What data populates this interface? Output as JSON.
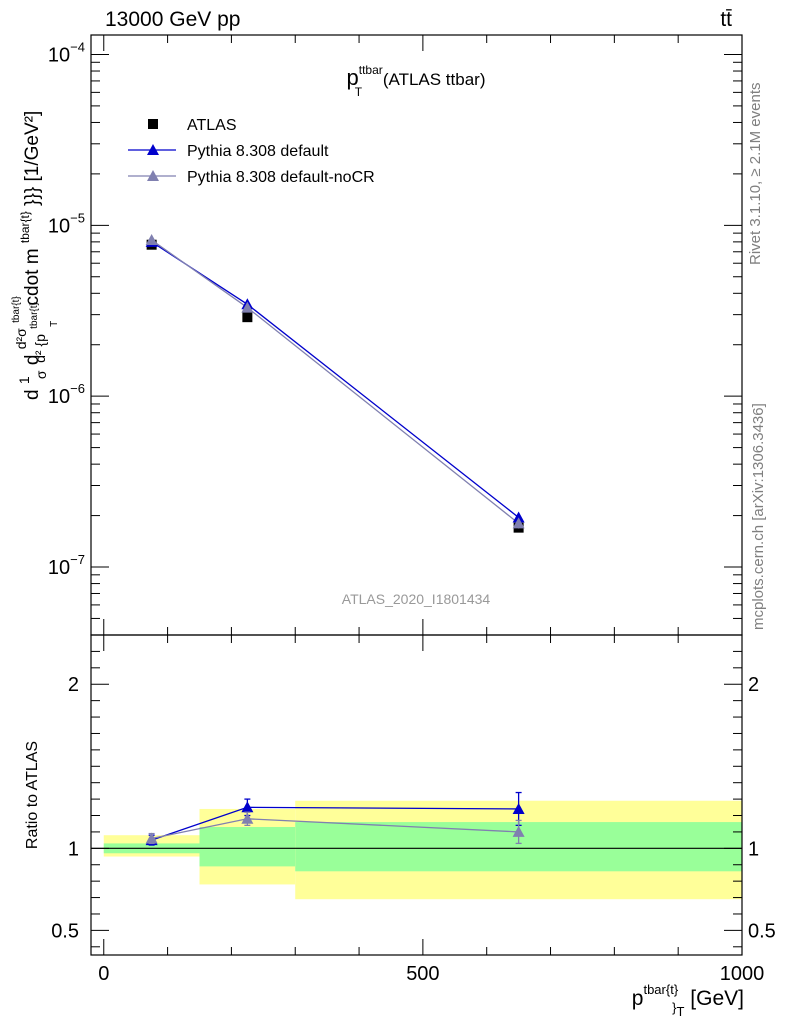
{
  "header": {
    "left": "13000 GeV pp",
    "right": "tt̄"
  },
  "side_text": {
    "rivet": "Rivet 3.1.10, ≥ 2.1M events",
    "mcplots": "mcplots.cern.ch [arXiv:1306.3436]"
  },
  "colors": {
    "atlas": "#000000",
    "default": "#0000cc",
    "nocr": "#8080b0",
    "band_inner": "#99ff99",
    "band_outer": "#ffff99",
    "analysis_label": "#999999"
  },
  "chart_data": [
    {
      "type": "scatter",
      "title": "p_T^{ttbar} (ATLAS ttbar)",
      "title_main": "p",
      "title_sup": "ttbar",
      "title_sub": "T",
      "title_rest": " (ATLAS ttbar)",
      "ylabel": "d\\frac{1}{\\sigma}d\\frac{d^2\\sigma^{tbar{t}}}{d^2 {p^{tbar{t}}_T cdot m^{tbar{t}}}} [1/GeV^2]",
      "ylabel_parts": {
        "d1": "d",
        "frac1_num": "1",
        "frac1_den": "σ",
        "d2": "d",
        "frac2_num": "d²σ",
        "frac2_num_sup": "tbar{t}",
        "frac2_den": "d² {p",
        "frac2_den_sup": "tbar{t}",
        "frac2_den_sub": "T",
        "rest": "cdot m",
        "rest_sup": "tbar{t}",
        "unit": "}}} [1/GeV²]"
      },
      "analysis_label": "ATLAS_2020_I1801434",
      "yscale": "log",
      "ylim": [
        4e-08,
        0.00013
      ],
      "xlim": [
        -20,
        1000
      ],
      "y_ticks": [
        1e-07,
        1e-06,
        1e-05,
        0.0001
      ],
      "y_tick_labels": [
        {
          "base": "10",
          "exp": "−7"
        },
        {
          "base": "10",
          "exp": "−6"
        },
        {
          "base": "10",
          "exp": "−5"
        },
        {
          "base": "10",
          "exp": "−4"
        }
      ],
      "legend_position": "top-left",
      "series": [
        {
          "name": "ATLAS",
          "marker": "square",
          "x": [
            75,
            225,
            650
          ],
          "y": [
            7.7e-06,
            2.9e-06,
            1.7e-07
          ],
          "yerr": [
            2e-07,
            1e-07,
            8e-09
          ]
        },
        {
          "name": "Pythia 8.308 default",
          "marker": "triangle",
          "line": true,
          "x": [
            75,
            225,
            650
          ],
          "y": [
            8e-06,
            3.45e-06,
            1.95e-07
          ],
          "yerr": [
            1.5e-07,
            1.5e-07,
            1.2e-08
          ]
        },
        {
          "name": "Pythia 8.308 default-noCR",
          "marker": "triangle",
          "line": true,
          "x": [
            75,
            225,
            650
          ],
          "y": [
            8.2e-06,
            3.3e-06,
            1.8e-07
          ],
          "yerr": [
            1.5e-07,
            1.5e-07,
            1.2e-08
          ]
        }
      ]
    },
    {
      "type": "scatter",
      "ylabel": "Ratio to ATLAS",
      "xlabel": "p^{tbar{t}}_T [GeV]",
      "xlabel_parts": {
        "main": "p",
        "sup": "tbar{t}",
        "sub": "}",
        "subsub": "T",
        "unit": " [GeV]"
      },
      "xlim": [
        -20,
        1000
      ],
      "ylim": [
        0.35,
        2.3
      ],
      "x_ticks": [
        0,
        500,
        1000
      ],
      "x_tick_labels": [
        "0",
        "500",
        "1000"
      ],
      "y_ticks": [
        0.5,
        1,
        2
      ],
      "y_tick_labels": [
        "0.5",
        "1",
        "2"
      ],
      "bands": [
        {
          "x0": 0,
          "x1": 150,
          "inner": [
            0.97,
            1.03
          ],
          "outer": [
            0.95,
            1.08
          ]
        },
        {
          "x0": 150,
          "x1": 300,
          "inner": [
            0.89,
            1.13
          ],
          "outer": [
            0.78,
            1.24
          ]
        },
        {
          "x0": 300,
          "x1": 1000,
          "inner": [
            0.86,
            1.16
          ],
          "outer": [
            0.69,
            1.29
          ]
        }
      ],
      "series": [
        {
          "name": "Pythia 8.308 default",
          "x": [
            75,
            225,
            650
          ],
          "y": [
            1.05,
            1.25,
            1.24
          ],
          "yerr": [
            0.03,
            0.05,
            0.1
          ]
        },
        {
          "name": "Pythia 8.308 default-noCR",
          "x": [
            75,
            225,
            650
          ],
          "y": [
            1.06,
            1.18,
            1.1
          ],
          "yerr": [
            0.03,
            0.04,
            0.07
          ]
        }
      ]
    }
  ]
}
